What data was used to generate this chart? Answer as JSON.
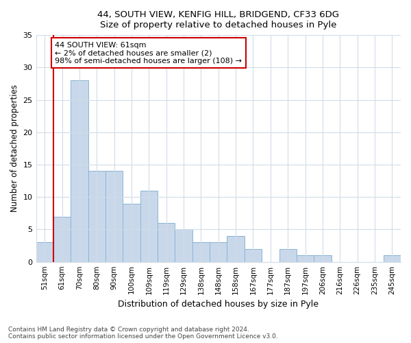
{
  "title1": "44, SOUTH VIEW, KENFIG HILL, BRIDGEND, CF33 6DG",
  "title2": "Size of property relative to detached houses in Pyle",
  "xlabel": "Distribution of detached houses by size in Pyle",
  "ylabel": "Number of detached properties",
  "categories": [
    "51sqm",
    "61sqm",
    "70sqm",
    "80sqm",
    "90sqm",
    "100sqm",
    "109sqm",
    "119sqm",
    "129sqm",
    "138sqm",
    "148sqm",
    "158sqm",
    "167sqm",
    "177sqm",
    "187sqm",
    "197sqm",
    "206sqm",
    "216sqm",
    "226sqm",
    "235sqm",
    "245sqm"
  ],
  "values": [
    3,
    7,
    28,
    14,
    14,
    9,
    11,
    6,
    5,
    3,
    3,
    4,
    2,
    0,
    2,
    1,
    1,
    0,
    0,
    0,
    1
  ],
  "bar_color": "#c8d8ea",
  "bar_edge_color": "#8ab4d4",
  "vline_color": "#cc0000",
  "vline_x_index": 1,
  "annotation_text": "44 SOUTH VIEW: 61sqm\n← 2% of detached houses are smaller (2)\n98% of semi-detached houses are larger (108) →",
  "annotation_box_color": "#ffffff",
  "annotation_box_edge": "#cc0000",
  "ylim": [
    0,
    35
  ],
  "yticks": [
    0,
    5,
    10,
    15,
    20,
    25,
    30,
    35
  ],
  "footer1": "Contains HM Land Registry data © Crown copyright and database right 2024.",
  "footer2": "Contains public sector information licensed under the Open Government Licence v3.0.",
  "bg_color": "#ffffff",
  "plot_bg_color": "#ffffff",
  "grid_color": "#d0dce8"
}
